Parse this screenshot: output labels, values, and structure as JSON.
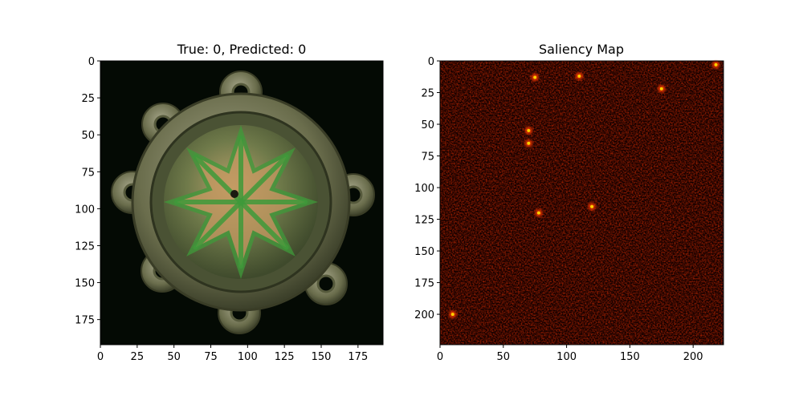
{
  "chart_data": [
    {
      "type": "image",
      "title": "True: 0, Predicted: 0",
      "content": "photo of round bronze brooch with six lobed knobs and green-enamelled star pattern",
      "xlim": [
        0,
        192
      ],
      "ylim": [
        192,
        0
      ],
      "x_ticks": [
        0,
        25,
        50,
        75,
        100,
        125,
        150,
        175
      ],
      "y_ticks": [
        0,
        25,
        50,
        75,
        100,
        125,
        150,
        175
      ],
      "colors": {
        "background": "#040a04",
        "metal": "#7a7c5c",
        "enamel": "#3f9a3a",
        "copper": "#c89a62"
      }
    },
    {
      "type": "heatmap",
      "title": "Saliency Map",
      "colormap": "hot",
      "xlim": [
        0,
        224
      ],
      "ylim": [
        224,
        0
      ],
      "x_ticks": [
        0,
        50,
        100,
        150,
        200
      ],
      "y_ticks": [
        0,
        25,
        50,
        75,
        100,
        125,
        150,
        175,
        200
      ],
      "hotspots": [
        {
          "x": 75,
          "y": 13
        },
        {
          "x": 110,
          "y": 12
        },
        {
          "x": 70,
          "y": 55
        },
        {
          "x": 70,
          "y": 65
        },
        {
          "x": 120,
          "y": 115
        },
        {
          "x": 175,
          "y": 22
        },
        {
          "x": 218,
          "y": 3
        },
        {
          "x": 10,
          "y": 200
        },
        {
          "x": 78,
          "y": 120
        }
      ]
    }
  ]
}
